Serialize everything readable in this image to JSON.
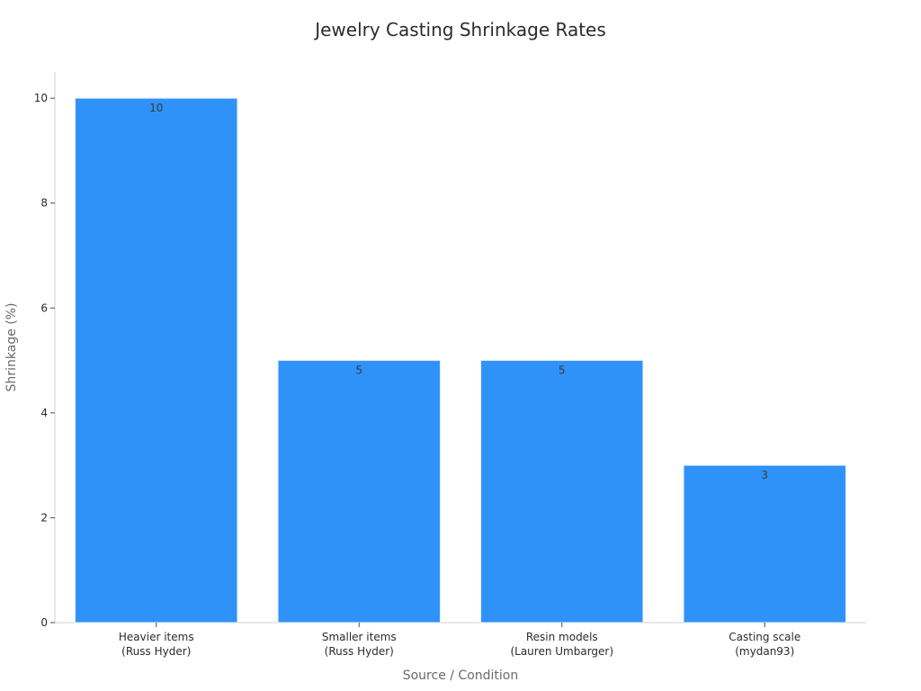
{
  "chart_data": {
    "type": "bar",
    "title": "Jewelry Casting Shrinkage Rates",
    "xlabel": "Source / Condition",
    "ylabel": "Shrinkage (%)",
    "categories": [
      [
        "Heavier items",
        "(Russ Hyder)"
      ],
      [
        "Smaller items",
        "(Russ Hyder)"
      ],
      [
        "Resin models",
        "(Lauren Umbarger)"
      ],
      [
        "Casting scale",
        "(mydan93)"
      ]
    ],
    "values": [
      10,
      5,
      5,
      3
    ],
    "data_labels": [
      "10",
      "5",
      "5",
      "3"
    ],
    "ylim": [
      0,
      10.5
    ],
    "yticks": [
      0,
      2,
      4,
      6,
      8,
      10
    ],
    "grid": false,
    "legend": "none",
    "colors": {
      "bar": "#2f92f8",
      "bar_edge": "#e6eef8",
      "axis": "#cfcfcf"
    }
  }
}
